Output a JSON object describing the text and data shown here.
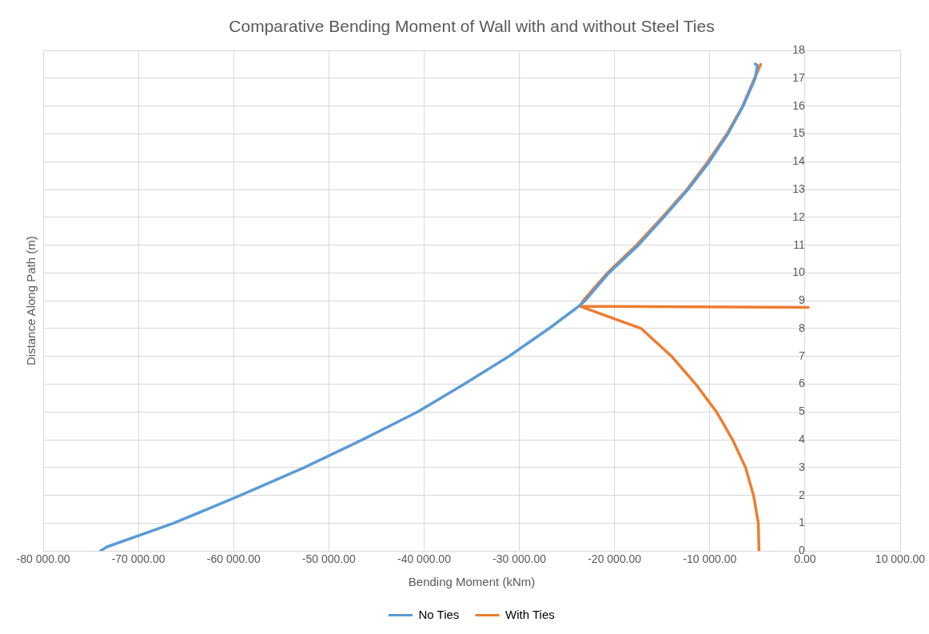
{
  "chart_data": {
    "type": "line",
    "title": "Comparative Bending Moment of Wall with and without Steel Ties",
    "xlabel": "Bending Moment (kNm)",
    "ylabel": "Distance Along Path (m)",
    "xlim": [
      -80000,
      10000
    ],
    "xticks": [
      {
        "value": -80000,
        "label": "-80 000.00"
      },
      {
        "value": -70000,
        "label": "-70 000.00"
      },
      {
        "value": -60000,
        "label": "-60 000.00"
      },
      {
        "value": -50000,
        "label": "-50 000.00"
      },
      {
        "value": -40000,
        "label": "-40 000.00"
      },
      {
        "value": -30000,
        "label": "-30 000.00"
      },
      {
        "value": -20000,
        "label": "-20 000.00"
      },
      {
        "value": -10000,
        "label": "-10 000.00"
      },
      {
        "value": 0,
        "label": "0.00"
      },
      {
        "value": 10000,
        "label": "10 000.00"
      }
    ],
    "ylim": [
      0,
      18
    ],
    "yticks": [
      0,
      1,
      2,
      3,
      4,
      5,
      6,
      7,
      8,
      9,
      10,
      11,
      12,
      13,
      14,
      15,
      16,
      17,
      18
    ],
    "grid": true,
    "legend": "bottom",
    "marker": "none",
    "line_style": "solid",
    "series": [
      {
        "name": "No Ties",
        "color": "#5b9bd5",
        "x": [
          -74000,
          -73300,
          -66300,
          -59300,
          -52600,
          -46500,
          -40700,
          -35800,
          -31100,
          -26900,
          -24000,
          -23100,
          -20600,
          -17500,
          -14850,
          -12300,
          -10050,
          -8100,
          -6500,
          -5230,
          -5000,
          -5230
        ],
        "values": [
          0,
          0.15,
          1,
          2,
          3,
          4,
          5,
          6,
          7,
          8,
          8.74,
          9,
          10,
          11,
          12,
          13,
          14,
          15,
          16,
          17,
          17.46,
          17.52
        ]
      },
      {
        "name": "With Ties",
        "color": "#ed7d31",
        "x": [
          -4830,
          -4900,
          -5400,
          -6240,
          -7600,
          -9280,
          -11470,
          -14000,
          -17200,
          -23600,
          340,
          -23600,
          -23300,
          -20750,
          -17700,
          -15000,
          -12400,
          -10200,
          -8200,
          -6550,
          -5300,
          -4650
        ],
        "values": [
          0,
          1,
          2,
          3,
          4,
          5,
          6,
          7,
          8,
          8.8,
          8.76,
          8.8,
          9,
          10,
          11,
          12,
          13,
          14,
          15,
          16,
          17,
          17.5
        ]
      }
    ]
  }
}
